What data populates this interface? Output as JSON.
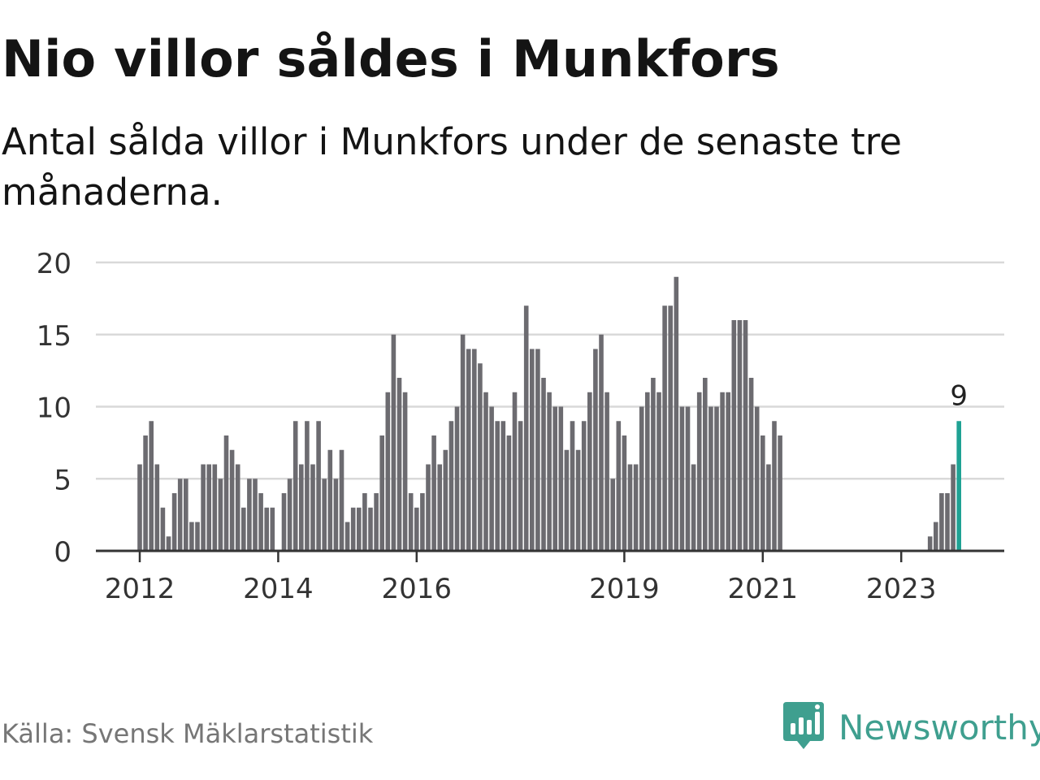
{
  "header": {
    "title": "Nio villor såldes i Munkfors",
    "subtitle": "Antal sålda villor i Munkfors under de senaste tre månaderna."
  },
  "footer": {
    "source": "Källa: Svensk Mäklarstatistik",
    "brand": "Newsworthy"
  },
  "colors": {
    "bar": "#6c6b70",
    "highlight": "#1fa294",
    "grid": "#d9d9d9",
    "axis": "#333333",
    "brand": "#3f9f8f"
  },
  "chart_data": {
    "type": "bar",
    "x_start": "2012-01",
    "x_end": "2023-12",
    "ylim": [
      0,
      20
    ],
    "yticks": [
      0,
      5,
      10,
      15,
      20
    ],
    "xticks": [
      "2012",
      "2014",
      "2016",
      "2019",
      "2021",
      "2023"
    ],
    "grid": true,
    "highlight": {
      "label": "9",
      "value": 9
    },
    "series": [
      {
        "values": [
          6,
          8,
          9,
          6,
          3,
          1,
          4,
          5,
          5,
          2,
          2,
          6,
          6,
          6,
          5,
          8,
          7,
          6,
          3,
          5,
          5,
          4,
          3,
          3,
          0,
          4,
          5,
          9,
          6,
          9,
          6,
          9,
          5,
          7,
          5,
          7,
          2,
          3,
          3,
          4,
          3,
          4,
          8,
          11,
          15,
          12,
          11,
          4,
          3,
          4,
          6,
          8,
          6,
          7,
          9,
          10,
          15,
          14,
          14,
          13,
          11,
          10,
          9,
          9,
          8,
          11,
          9,
          17,
          14,
          14,
          12,
          11,
          10,
          10,
          7,
          9,
          7,
          9,
          11,
          14,
          15,
          11,
          5,
          9,
          8,
          6,
          6,
          10,
          11,
          12,
          11,
          17,
          17,
          19,
          10,
          10,
          6,
          11,
          12,
          10,
          10,
          11,
          11,
          16,
          16,
          16,
          12,
          10,
          8,
          6,
          9,
          8,
          0,
          0,
          0,
          0,
          0,
          0,
          0,
          0,
          0,
          0,
          0,
          0,
          0,
          0,
          0,
          0,
          0,
          0,
          0,
          0,
          0,
          0,
          0,
          0,
          0,
          1,
          2,
          4,
          4,
          6,
          9,
          0
        ]
      }
    ]
  }
}
